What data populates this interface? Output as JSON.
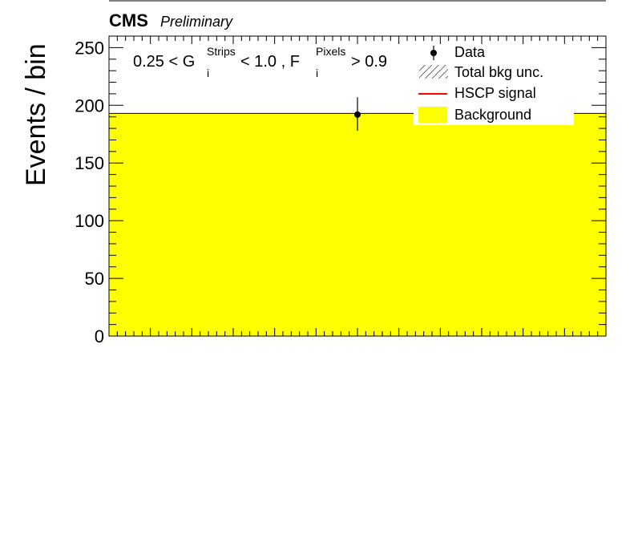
{
  "header": {
    "experiment": "CMS",
    "status": "Preliminary"
  },
  "cut_label": {
    "part1": "0.25 < G",
    "g_sup": "Strips",
    "g_sub": "i",
    "part2": " < 1.0 , F",
    "f_sup": "Pixels",
    "f_sub": "i",
    "part3": " > 0.9"
  },
  "legend": [
    {
      "label": "Data",
      "kind": "marker"
    },
    {
      "label": "Total bkg unc.",
      "kind": "hatch"
    },
    {
      "label": "HSCP signal",
      "kind": "line",
      "color": "#ff0000"
    },
    {
      "label": "Background",
      "kind": "fill",
      "color": "#ffff00"
    }
  ],
  "chart_data": {
    "type": "bar",
    "ylabel": "Events / bin",
    "ylim": [
      0,
      260
    ],
    "yticks": [
      0,
      50,
      100,
      150,
      200,
      250
    ],
    "background": {
      "value": 193,
      "color": "#ffff00"
    },
    "data": {
      "x": 0.5,
      "y": 192,
      "err_low": 14,
      "err_high": 15
    },
    "signal": {
      "color": "#ff0000"
    }
  }
}
